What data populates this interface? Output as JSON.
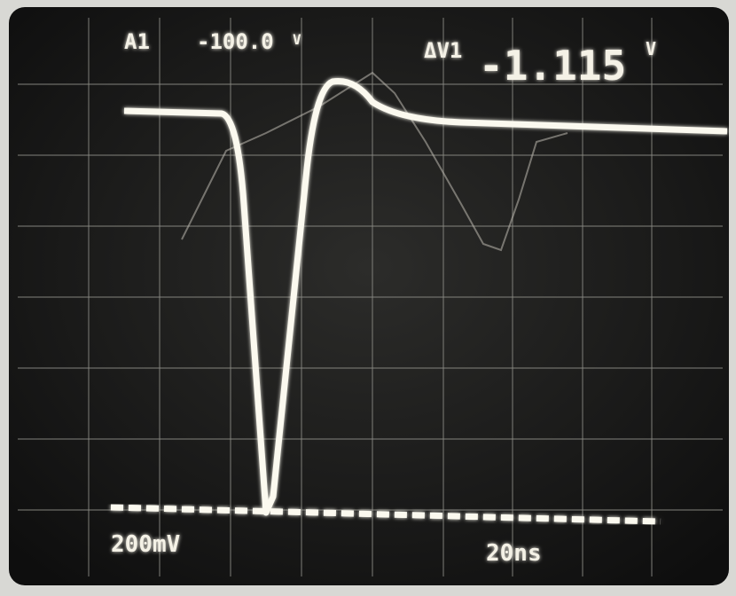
{
  "readout": {
    "channel": "A1",
    "trigger_level": "-100.0",
    "trigger_unit": "V",
    "delta_label": "ΔV1",
    "delta_value": "-1.115",
    "delta_unit": "V"
  },
  "scale": {
    "volts_per_div": "200mV",
    "time_per_div": "20ns"
  }
}
